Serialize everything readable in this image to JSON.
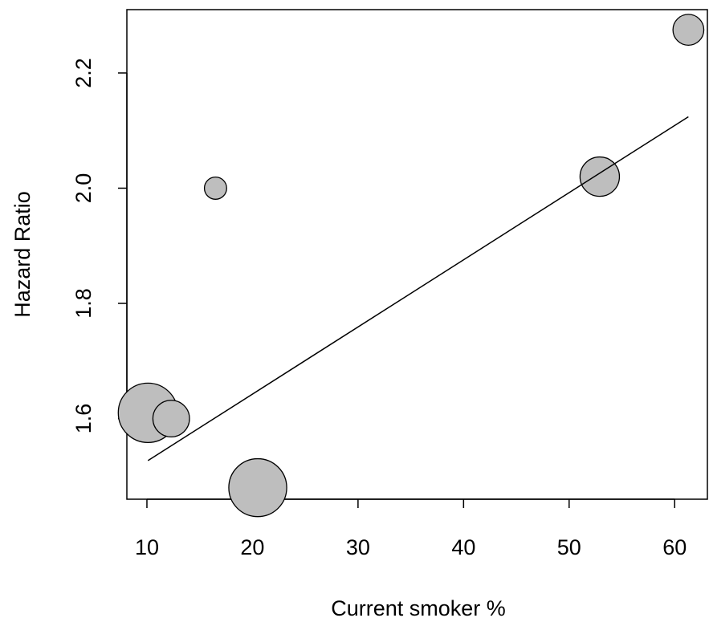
{
  "chart_data": {
    "type": "scatter",
    "xlabel": "Current smoker %",
    "ylabel": "Hazard Ratio",
    "xlim": [
      8.1,
      63.1
    ],
    "ylim": [
      1.46,
      2.31
    ],
    "x_ticks": [
      10,
      20,
      30,
      40,
      50,
      60
    ],
    "x_tick_labels": [
      "10",
      "20",
      "30",
      "40",
      "50",
      "60"
    ],
    "y_ticks": [
      1.6,
      1.8,
      2.0,
      2.2
    ],
    "y_tick_labels": [
      "1.6",
      "1.8",
      "2.0",
      "2.2"
    ],
    "grid": false,
    "legend": "none",
    "point_fill": "#bebebe",
    "point_stroke": "#000000",
    "points": [
      {
        "x": 10.1,
        "y": 1.61,
        "weight": 1.0
      },
      {
        "x": 12.3,
        "y": 1.6,
        "weight": 0.38
      },
      {
        "x": 16.5,
        "y": 2.0,
        "weight": 0.14
      },
      {
        "x": 20.5,
        "y": 1.48,
        "weight": 0.95
      },
      {
        "x": 52.9,
        "y": 2.02,
        "weight": 0.44
      },
      {
        "x": 61.3,
        "y": 2.275,
        "weight": 0.27
      }
    ],
    "fit_line": {
      "x": [
        10.1,
        61.3
      ],
      "y": [
        1.527,
        2.124
      ]
    }
  }
}
